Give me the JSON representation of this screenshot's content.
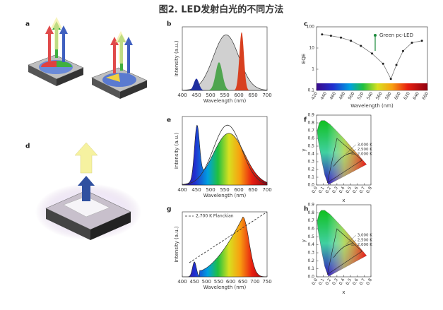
{
  "title": "图2. LED发射白光的不同方法",
  "panels": {
    "a": {
      "label": "a"
    },
    "b": {
      "label": "b",
      "xticks": [
        "400",
        "450",
        "500",
        "550",
        "600",
        "650",
        "700"
      ],
      "xlabel": "Wavelength (nm)",
      "ylabel": "Intensity (a.u.)"
    },
    "c": {
      "label": "c",
      "yticks": [
        "100",
        "10",
        "1",
        "0.1"
      ],
      "xticks": [
        "420",
        "440",
        "460",
        "480",
        "500",
        "520",
        "540",
        "560",
        "580",
        "600",
        "620",
        "640",
        "660"
      ],
      "xlabel": "Wavelength (nm)",
      "ylabel": "EQE",
      "annotation": "Green pc-LED"
    },
    "d": {
      "label": "d"
    },
    "e": {
      "label": "e",
      "xticks": [
        "400",
        "450",
        "500",
        "550",
        "600",
        "650",
        "700"
      ],
      "xlabel": "Wavelength (nm)",
      "ylabel": "Intensity (a.u.)"
    },
    "f": {
      "label": "f",
      "yticks": [
        "0.9",
        "0.8",
        "0.7",
        "0.6",
        "0.5",
        "0.4",
        "0.3",
        "0.2",
        "0.1",
        "0.0"
      ],
      "xticks": [
        "0.0",
        "0.1",
        "0.2",
        "0.3",
        "0.4",
        "0.5",
        "0.6",
        "0.7",
        "0.8"
      ],
      "xlabel": "x",
      "ylabel": "y",
      "annotations": [
        "3,000 K",
        "2,500 K",
        "2,000 K"
      ]
    },
    "g": {
      "label": "g",
      "xticks": [
        "400",
        "450",
        "500",
        "550",
        "600",
        "650",
        "700",
        "750"
      ],
      "xlabel": "Wavelength (nm)",
      "ylabel": "Intensity (a.u.)",
      "legend": "2,700 K Planckian"
    },
    "h": {
      "label": "h",
      "yticks": [
        "0.9",
        "0.8",
        "0.7",
        "0.6",
        "0.5",
        "0.4",
        "0.3",
        "0.2",
        "0.1",
        "0.0"
      ],
      "xticks": [
        "0.0",
        "0.1",
        "0.2",
        "0.3",
        "0.4",
        "0.5",
        "0.6",
        "0.7",
        "0.8"
      ],
      "xlabel": "x",
      "ylabel": "y",
      "annotations": [
        "3,000 K",
        "2,500 K",
        "2,000 K"
      ]
    }
  }
}
